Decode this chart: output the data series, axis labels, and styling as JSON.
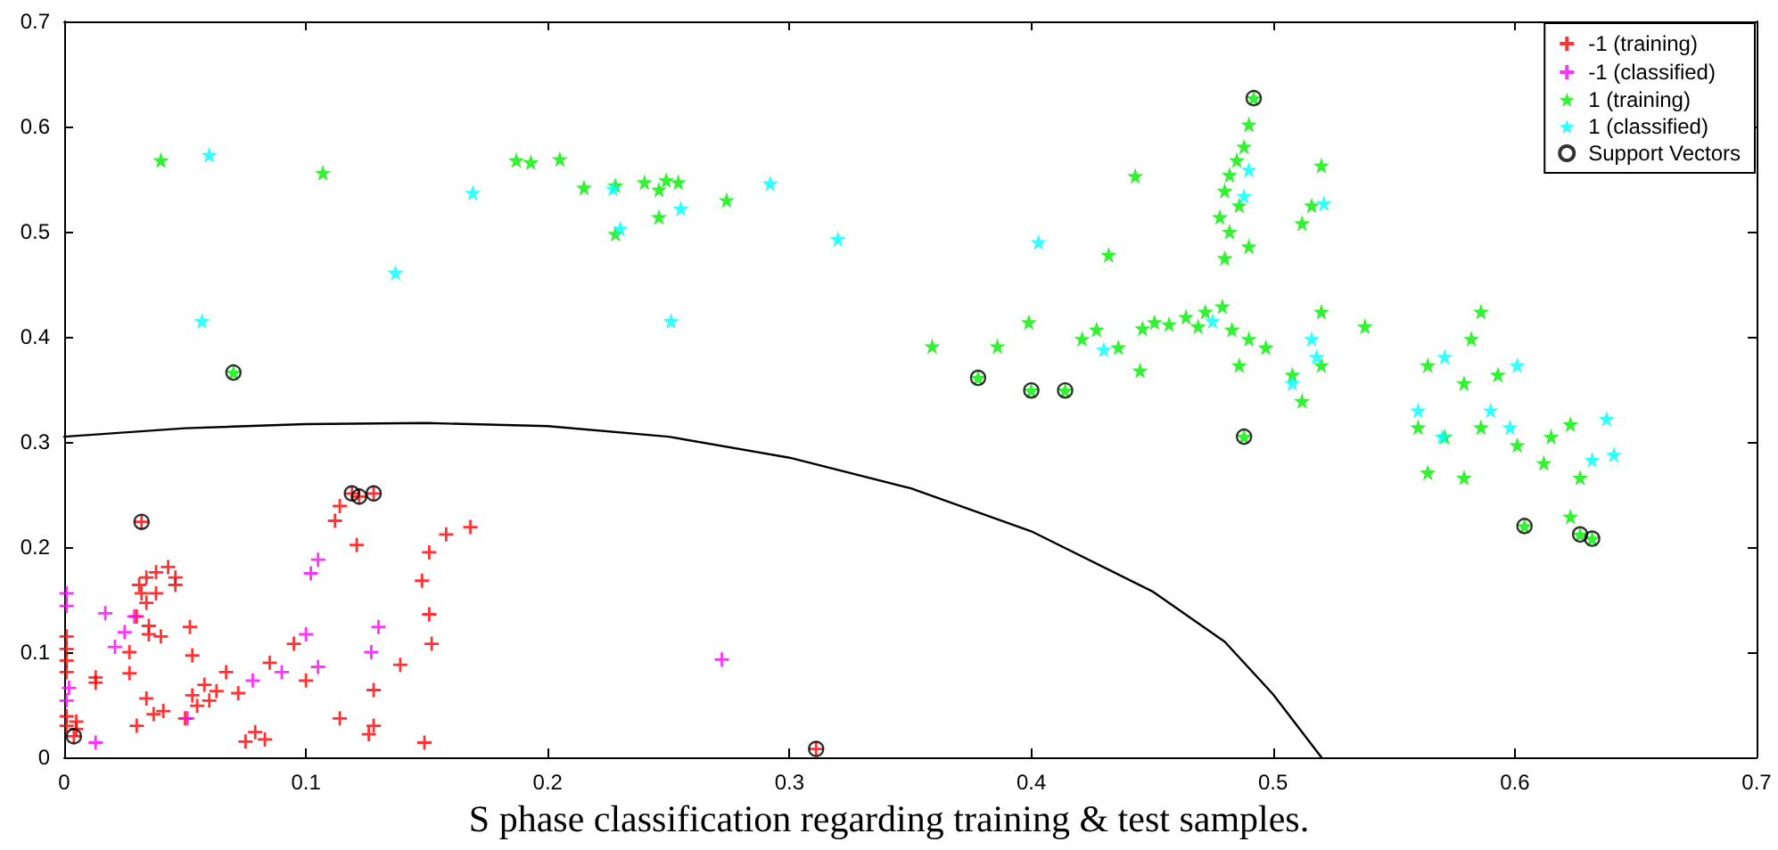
{
  "chart_data": {
    "type": "scatter",
    "title": "S phase classification regarding training & test samples.",
    "xlim": [
      0,
      0.7
    ],
    "ylim": [
      0,
      0.7
    ],
    "xticks": [
      0,
      0.1,
      0.2,
      0.3,
      0.4,
      0.5,
      0.6,
      0.7
    ],
    "yticks": [
      0,
      0.1,
      0.2,
      0.3,
      0.4,
      0.5,
      0.6,
      0.7
    ],
    "grid": false,
    "legend": "top right",
    "series": [
      {
        "name": "-1 (training)",
        "color": "#ff0000",
        "marker": "cross",
        "x": [
          0.114,
          0.112,
          0.121,
          0.168,
          0.158,
          0.151,
          0.148,
          0.151,
          0.152,
          0.139,
          0.128,
          0.114,
          0.128,
          0.126,
          0.149,
          0.095,
          0.1,
          0.085,
          0.072,
          0.067,
          0.063,
          0.058,
          0.06,
          0.055,
          0.053,
          0.05,
          0.053,
          0.052,
          0.041,
          0.037,
          0.034,
          0.03,
          0.075,
          0.079,
          0.083,
          0.027,
          0.027,
          0.013,
          0.013,
          0.04,
          0.035,
          0.035,
          0.03,
          0.034,
          0.032,
          0.038,
          0.031,
          0.034,
          0.038,
          0.043,
          0.046,
          0.046,
          0.001,
          0.001,
          0.001,
          0.001,
          0.001,
          0.001,
          0.005,
          0.005,
          0.032,
          0.119,
          0.122,
          0.128,
          0.004,
          0.311
        ],
        "values": [
          0.239,
          0.225,
          0.202,
          0.219,
          0.212,
          0.195,
          0.168,
          0.136,
          0.108,
          0.088,
          0.064,
          0.037,
          0.03,
          0.022,
          0.014,
          0.108,
          0.073,
          0.09,
          0.061,
          0.081,
          0.063,
          0.069,
          0.054,
          0.049,
          0.059,
          0.037,
          0.097,
          0.124,
          0.044,
          0.041,
          0.056,
          0.03,
          0.015,
          0.024,
          0.017,
          0.08,
          0.1,
          0.076,
          0.071,
          0.115,
          0.117,
          0.125,
          0.134,
          0.147,
          0.156,
          0.156,
          0.164,
          0.171,
          0.176,
          0.181,
          0.171,
          0.164,
          0.115,
          0.103,
          0.092,
          0.081,
          0.039,
          0.03,
          0.034,
          0.027,
          0.224,
          0.251,
          0.248,
          0.251,
          0.02,
          0.008
        ]
      },
      {
        "name": "-1 (classified)",
        "color": "#ff00ff",
        "marker": "cross",
        "x": [
          0.105,
          0.102,
          0.1,
          0.105,
          0.09,
          0.078,
          0.13,
          0.127,
          0.051,
          0.017,
          0.025,
          0.021,
          0.029,
          0.013,
          0.001,
          0.001,
          0.002,
          0.001,
          0.272
        ],
        "values": [
          0.188,
          0.175,
          0.117,
          0.086,
          0.081,
          0.073,
          0.124,
          0.1,
          0.037,
          0.137,
          0.119,
          0.105,
          0.134,
          0.014,
          0.156,
          0.144,
          0.066,
          0.054,
          0.093
        ]
      },
      {
        "name": "1 (training)",
        "color": "#00ee00",
        "marker": "star",
        "x": [
          0.04,
          0.107,
          0.187,
          0.193,
          0.205,
          0.215,
          0.228,
          0.228,
          0.24,
          0.246,
          0.246,
          0.249,
          0.254,
          0.274,
          0.359,
          0.386,
          0.399,
          0.421,
          0.427,
          0.436,
          0.445,
          0.446,
          0.451,
          0.443,
          0.432,
          0.492,
          0.49,
          0.488,
          0.485,
          0.482,
          0.48,
          0.486,
          0.478,
          0.482,
          0.49,
          0.48,
          0.52,
          0.516,
          0.512,
          0.457,
          0.464,
          0.472,
          0.479,
          0.469,
          0.483,
          0.49,
          0.486,
          0.497,
          0.508,
          0.512,
          0.52,
          0.538,
          0.52,
          0.586,
          0.582,
          0.564,
          0.579,
          0.593,
          0.56,
          0.571,
          0.586,
          0.601,
          0.615,
          0.623,
          0.612,
          0.564,
          0.579,
          0.627,
          0.623,
          0.378,
          0.4,
          0.414,
          0.488,
          0.604,
          0.627,
          0.632,
          0.07
        ],
        "values": [
          0.568,
          0.556,
          0.568,
          0.566,
          0.569,
          0.542,
          0.544,
          0.498,
          0.547,
          0.54,
          0.514,
          0.549,
          0.547,
          0.53,
          0.391,
          0.391,
          0.414,
          0.398,
          0.407,
          0.39,
          0.368,
          0.408,
          0.414,
          0.553,
          0.478,
          0.627,
          0.602,
          0.581,
          0.568,
          0.554,
          0.539,
          0.525,
          0.514,
          0.5,
          0.486,
          0.475,
          0.563,
          0.525,
          0.508,
          0.412,
          0.419,
          0.424,
          0.429,
          0.41,
          0.407,
          0.398,
          0.373,
          0.39,
          0.364,
          0.339,
          0.373,
          0.41,
          0.424,
          0.424,
          0.398,
          0.373,
          0.356,
          0.364,
          0.314,
          0.305,
          0.314,
          0.297,
          0.305,
          0.317,
          0.28,
          0.271,
          0.266,
          0.266,
          0.229,
          0.361,
          0.349,
          0.349,
          0.305,
          0.22,
          0.212,
          0.208,
          0.366
        ]
      },
      {
        "name": "1 (classified)",
        "color": "#00ffff",
        "marker": "star",
        "x": [
          0.06,
          0.057,
          0.137,
          0.169,
          0.227,
          0.23,
          0.255,
          0.251,
          0.292,
          0.32,
          0.403,
          0.43,
          0.49,
          0.488,
          0.521,
          0.516,
          0.518,
          0.508,
          0.475,
          0.56,
          0.57,
          0.59,
          0.598,
          0.638,
          0.641,
          0.632,
          0.571,
          0.601
        ],
        "values": [
          0.573,
          0.415,
          0.461,
          0.537,
          0.541,
          0.503,
          0.522,
          0.415,
          0.546,
          0.493,
          0.49,
          0.388,
          0.559,
          0.534,
          0.527,
          0.398,
          0.381,
          0.356,
          0.415,
          0.33,
          0.305,
          0.33,
          0.314,
          0.322,
          0.288,
          0.283,
          0.381,
          0.373
        ]
      },
      {
        "name": "Support Vectors",
        "color": "#000000",
        "marker": "circle",
        "x": [
          0.032,
          0.119,
          0.122,
          0.128,
          0.004,
          0.311,
          0.07,
          0.378,
          0.4,
          0.414,
          0.488,
          0.492,
          0.604,
          0.627,
          0.632
        ],
        "values": [
          0.224,
          0.251,
          0.248,
          0.251,
          0.02,
          0.008,
          0.366,
          0.361,
          0.349,
          0.349,
          0.305,
          0.627,
          0.22,
          0.212,
          0.208
        ]
      },
      {
        "type": "line",
        "color": "#000000",
        "marker": "none",
        "x": [
          0,
          0.05,
          0.1,
          0.15,
          0.2,
          0.25,
          0.3,
          0.35,
          0.4,
          0.45,
          0.48,
          0.5,
          0.52
        ],
        "values": [
          0.305,
          0.313,
          0.317,
          0.318,
          0.315,
          0.305,
          0.285,
          0.256,
          0.215,
          0.158,
          0.11,
          0.06,
          0
        ]
      }
    ]
  }
}
